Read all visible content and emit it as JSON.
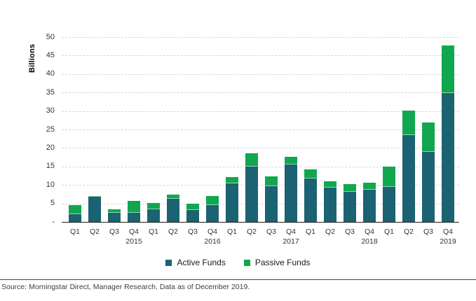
{
  "chart_data": {
    "type": "bar",
    "stacked": true,
    "ylabel": "Billions",
    "ylim": [
      0,
      50
    ],
    "ytick_step": 5,
    "ytick_labels": [
      "-",
      "5",
      "10",
      "15",
      "20",
      "25",
      "30",
      "35",
      "40",
      "45",
      "50"
    ],
    "grid": "horizontal dashed",
    "legend_position": "bottom-center",
    "quarters": [
      "Q1",
      "Q2",
      "Q3",
      "Q4"
    ],
    "years": [
      "2015",
      "2016",
      "2017",
      "2018",
      "2019"
    ],
    "series": [
      {
        "name": "Active Funds",
        "color": "#1B6272",
        "values": [
          2.0,
          6.9,
          2.4,
          2.4,
          3.4,
          6.2,
          3.3,
          4.6,
          10.4,
          15.0,
          9.6,
          15.6,
          11.8,
          9.2,
          8.1,
          8.7,
          9.5,
          23.4,
          18.9,
          34.8
        ]
      },
      {
        "name": "Passive Funds",
        "color": "#11A74E",
        "values": [
          2.5,
          0.2,
          1.1,
          3.2,
          1.8,
          1.2,
          1.6,
          2.4,
          1.8,
          3.5,
          2.8,
          2.1,
          2.5,
          1.8,
          2.1,
          1.9,
          5.5,
          6.8,
          8.0,
          12.9
        ]
      }
    ]
  },
  "footer": {
    "source_text": "Source: Morningstar Direct, Manager Research. Data as of December 2019."
  }
}
